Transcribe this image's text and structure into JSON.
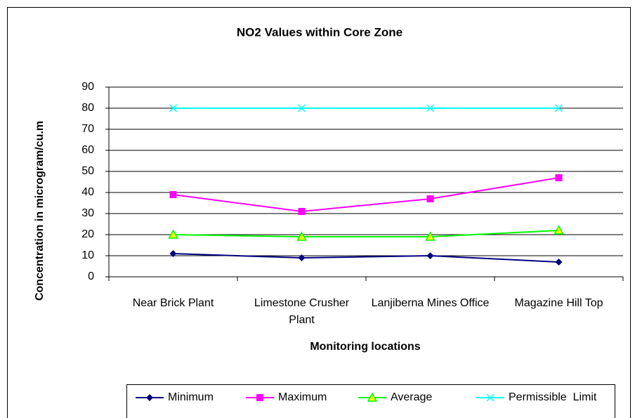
{
  "chart_data": {
    "type": "line",
    "title": "NO2 Values within Core Zone",
    "x_label": "Monitoring locations",
    "y_label": "Concentration in microgram/cu.m",
    "categories": [
      "Near Brick Plant",
      "Limestone Crusher Plant",
      "Lanjiberna Mines Office",
      "Magazine Hill Top"
    ],
    "series": [
      {
        "name": "Minimum",
        "color": "#000080",
        "marker": "diamond",
        "values": [
          11,
          9,
          10,
          7
        ]
      },
      {
        "name": "Maximum",
        "color": "#ff00ff",
        "marker": "square",
        "values": [
          39,
          31,
          37,
          47
        ]
      },
      {
        "name": "Average",
        "color": "#00ff00",
        "marker": "triangle",
        "values": [
          20,
          19,
          19,
          22
        ]
      },
      {
        "name": "Permissible  Limit",
        "color": "#00ffff",
        "marker": "x",
        "values": [
          80,
          80,
          80,
          80
        ]
      }
    ],
    "ylim": [
      0,
      90
    ],
    "yticks": [
      0,
      10,
      20,
      30,
      40,
      50,
      60,
      70,
      80,
      90
    ],
    "grid": true,
    "legend": "bottom"
  }
}
